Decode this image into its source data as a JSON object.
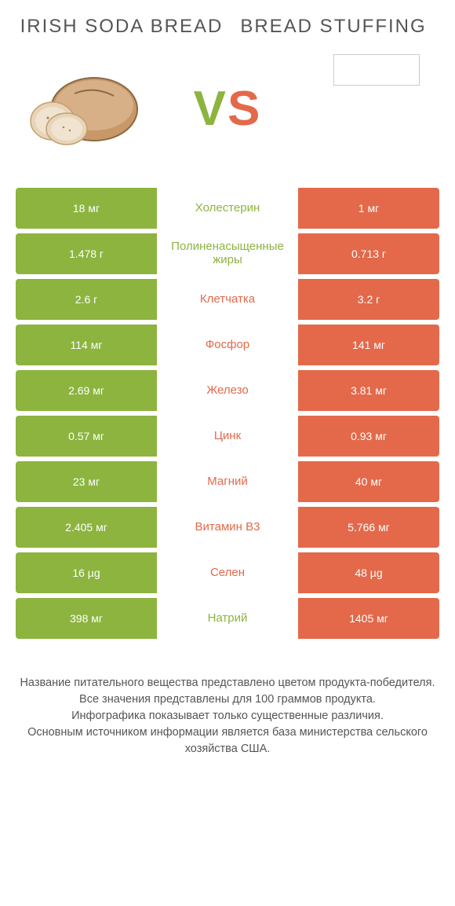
{
  "colors": {
    "green": "#8cb43f",
    "orange": "#e3694a",
    "text": "#555",
    "bg": "#ffffff"
  },
  "header": {
    "left_title": "IRISH SODA BREAD",
    "right_title": "BREAD STUFFING",
    "vs_v": "V",
    "vs_s": "S"
  },
  "table": {
    "type": "comparison-table",
    "winner_color_map": {
      "left": "green",
      "right": "orange"
    },
    "rows": [
      {
        "left": "18 мг",
        "label": "Холестерин",
        "right": "1 мг",
        "winner": "left"
      },
      {
        "left": "1.478 г",
        "label": "Полиненасыщенные жиры",
        "right": "0.713 г",
        "winner": "left"
      },
      {
        "left": "2.6 г",
        "label": "Клетчатка",
        "right": "3.2 г",
        "winner": "right"
      },
      {
        "left": "114 мг",
        "label": "Фосфор",
        "right": "141 мг",
        "winner": "right"
      },
      {
        "left": "2.69 мг",
        "label": "Железо",
        "right": "3.81 мг",
        "winner": "right"
      },
      {
        "left": "0.57 мг",
        "label": "Цинк",
        "right": "0.93 мг",
        "winner": "right"
      },
      {
        "left": "23 мг",
        "label": "Магний",
        "right": "40 мг",
        "winner": "right"
      },
      {
        "left": "2.405 мг",
        "label": "Витамин B3",
        "right": "5.766 мг",
        "winner": "right"
      },
      {
        "left": "16 µg",
        "label": "Селен",
        "right": "48 µg",
        "winner": "right"
      },
      {
        "left": "398 мг",
        "label": "Натрий",
        "right": "1405 мг",
        "winner": "left"
      }
    ]
  },
  "footer": {
    "line1": "Название питательного вещества представлено цветом продукта-победителя.",
    "line2": "Все значения представлены для 100 граммов продукта.",
    "line3": "Инфографика показывает только существенные различия.",
    "line4": "Основным источником информации является база министерства сельского хозяйства США."
  }
}
